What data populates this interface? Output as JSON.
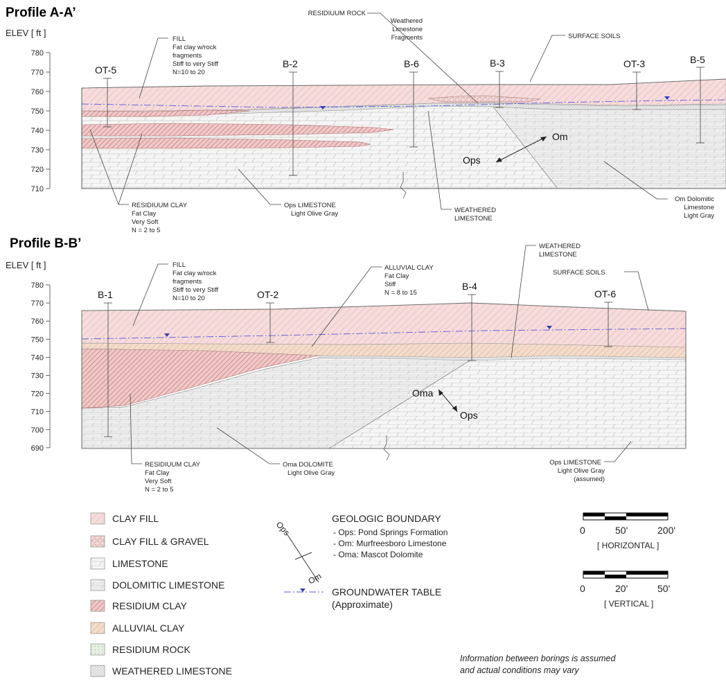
{
  "profile_a": {
    "title": "Profile A-A’",
    "elev_label": "ELEV [ ft ]",
    "ticks": [
      780,
      770,
      760,
      750,
      740,
      730,
      720,
      710
    ],
    "borings": [
      "OT-5",
      "B-2",
      "B-6",
      "B-3",
      "OT-3",
      "B-5"
    ],
    "notes": {
      "fill": [
        "FILL",
        "Fat clay w/rock",
        "fragments",
        "Stiff to very Stiff",
        "N=10 to 20"
      ],
      "residuum_rock": [
        "RESIDIUUM ROCK",
        "Weathered",
        "Limestone",
        "Fragments"
      ],
      "surface_soils": "SURFACE SOILS",
      "residuum_clay": [
        "RESIDIUUM CLAY",
        "Fat Clay",
        "Very Soft",
        "N = 2 to 5"
      ],
      "ops_limestone": [
        "Ops LIMESTONE",
        "Light Olive Gray"
      ],
      "weathered_limestone": [
        "WEATHERED",
        "LIMESTONE"
      ],
      "om_dolomitic": [
        "Om Dolomitic",
        "Limestone",
        "Light Gray"
      ]
    },
    "zones": [
      "Om",
      "Ops"
    ]
  },
  "profile_b": {
    "title": "Profile B-B’",
    "elev_label": "ELEV [ ft ]",
    "ticks": [
      780,
      770,
      760,
      750,
      740,
      730,
      720,
      710,
      700,
      690
    ],
    "borings": [
      "B-1",
      "OT-2",
      "B-4",
      "OT-6"
    ],
    "notes": {
      "fill": [
        "FILL",
        "Fat clay w/rock",
        "fragments",
        "Stiff to very Stiff",
        "N=10 to 20"
      ],
      "alluvial_clay": [
        "ALLUVIAL CLAY",
        "Fat Clay",
        "Stiff",
        "N = 8 to 15"
      ],
      "weathered_limestone": [
        "WEATHERED",
        "LIMESTONE"
      ],
      "surface_soils": "SURFACE SOILS",
      "residuum_clay": [
        "RESIDIUUM CLAY",
        "Fat Clay",
        "Very Soft",
        "N = 2 to 5"
      ],
      "oma_dolomite": [
        "Oma DOLOMITE",
        "Light Olive Gray"
      ],
      "ops_limestone": [
        "Ops LIMESTONE",
        "Light Olive Gray",
        "(assumed)"
      ]
    },
    "zones": [
      "Oma",
      "Ops"
    ]
  },
  "legend": {
    "items": [
      "CLAY FILL",
      "CLAY FILL & GRAVEL",
      "LIMESTONE",
      "DOLOMITIC LIMESTONE",
      "RESIDIUM CLAY",
      "ALLUVIAL CLAY",
      "RESIDIUM ROCK",
      "WEATHERED LIMESTONE"
    ],
    "boundary_symbol": [
      "Ops",
      "Om"
    ],
    "boundary_title": "GEOLOGIC BOUNDARY",
    "boundary_lines": [
      "- Ops: Pond Springs Formation",
      "- Om: Murfreesboro Limestone",
      "- Oma: Mascot Dolomite"
    ],
    "groundwater": [
      "GROUNDWATER TABLE",
      "(Approximate)"
    ],
    "scale_h": {
      "labels": [
        "0",
        "50'",
        "200'"
      ],
      "caption": "[ HORIZONTAL ]"
    },
    "scale_v": {
      "labels": [
        "0",
        "20'",
        "50'"
      ],
      "caption": "[ VERTICAL ]"
    },
    "disclaimer": [
      "Information between borings is assumed",
      "and actual conditions may vary"
    ]
  },
  "colors": {
    "clay_fill": "#f6dcdc",
    "hatch_red": "#c88a8a",
    "alluvial": "#f3dccb",
    "limestone": "#f3f3f3",
    "groundwater": "#5a5ad8"
  }
}
